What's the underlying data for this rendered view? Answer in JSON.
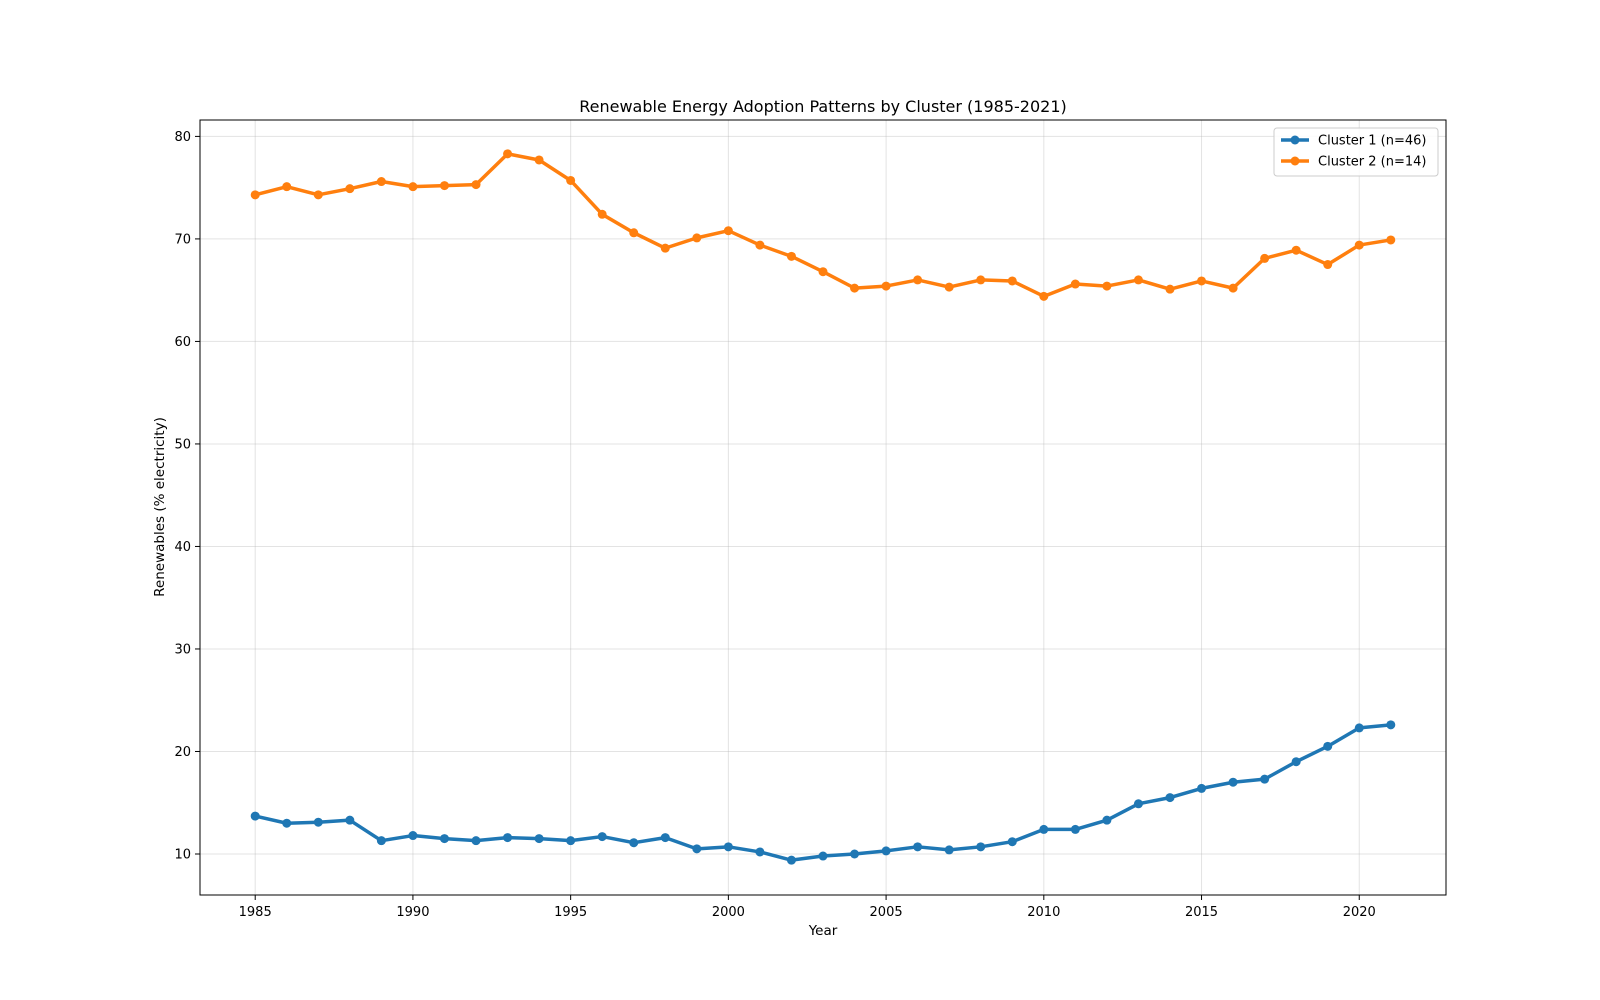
{
  "chart_data": {
    "type": "line",
    "title": "Renewable Energy Adoption Patterns by Cluster (1985-2021)",
    "xlabel": "Year",
    "ylabel": "Renewables (% electricity)",
    "xlim": [
      1983.25,
      2022.75
    ],
    "ylim": [
      6.0,
      81.6
    ],
    "xticks": [
      1985,
      1990,
      1995,
      2000,
      2005,
      2010,
      2015,
      2020
    ],
    "yticks": [
      10,
      20,
      30,
      40,
      50,
      60,
      70,
      80
    ],
    "grid": true,
    "legend_position": "top-right",
    "x": [
      1985,
      1986,
      1987,
      1988,
      1989,
      1990,
      1991,
      1992,
      1993,
      1994,
      1995,
      1996,
      1997,
      1998,
      1999,
      2000,
      2001,
      2002,
      2003,
      2004,
      2005,
      2006,
      2007,
      2008,
      2009,
      2010,
      2011,
      2012,
      2013,
      2014,
      2015,
      2016,
      2017,
      2018,
      2019,
      2020,
      2021
    ],
    "series": [
      {
        "name": "Cluster 1 (n=46)",
        "color": "#1f77b4",
        "values": [
          13.7,
          13.0,
          13.1,
          13.3,
          11.3,
          11.8,
          11.5,
          11.3,
          11.6,
          11.5,
          11.3,
          11.7,
          11.1,
          11.6,
          10.5,
          10.7,
          10.2,
          9.4,
          9.8,
          10.0,
          10.3,
          10.7,
          10.4,
          10.7,
          11.2,
          12.4,
          12.4,
          13.3,
          14.9,
          15.5,
          16.4,
          17.0,
          17.3,
          19.0,
          20.5,
          22.3,
          22.6
        ]
      },
      {
        "name": "Cluster 2 (n=14)",
        "color": "#ff7f0e",
        "values": [
          74.3,
          75.1,
          74.3,
          74.9,
          75.6,
          75.1,
          75.2,
          75.3,
          78.3,
          77.7,
          75.7,
          72.4,
          70.6,
          69.1,
          70.1,
          70.8,
          69.4,
          68.3,
          66.8,
          65.2,
          65.4,
          66.0,
          65.3,
          66.0,
          65.9,
          64.4,
          65.6,
          65.4,
          66.0,
          65.1,
          65.9,
          65.2,
          68.1,
          68.9,
          67.5,
          69.4,
          69.9
        ]
      }
    ]
  }
}
